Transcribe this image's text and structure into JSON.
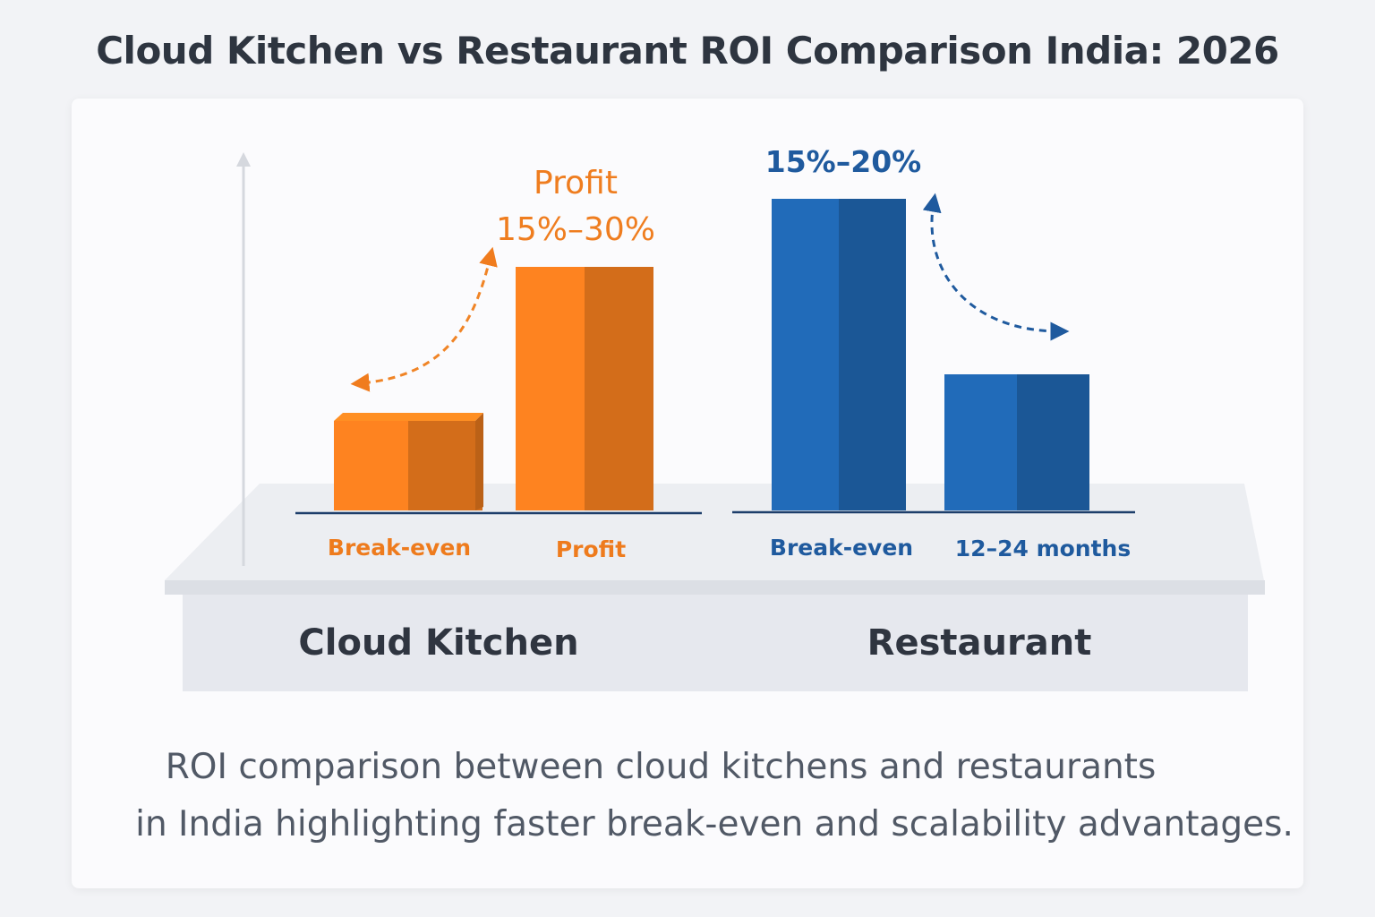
{
  "title": "Cloud Kitchen vs Restaurant ROI Comparison India: 2026",
  "caption": {
    "line1": "ROI comparison between cloud kitchens and restaurants",
    "line2": "in India highlighting faster break-even and scalability advantages."
  },
  "colors": {
    "cloud_kitchen": "#f07c1e",
    "restaurant": "#1f63ab",
    "title_text": "#2e3540",
    "caption_text": "#515966"
  },
  "chart_data": {
    "type": "bar",
    "title": "Cloud Kitchen vs Restaurant ROI Comparison India: 2026",
    "xlabel": "",
    "ylabel": "",
    "yaxis_ticks": false,
    "grid": false,
    "groups": [
      {
        "name": "Cloud Kitchen",
        "color": "#f07c1e",
        "bars": [
          {
            "category": "Break-even",
            "value": 2.5,
            "label": "Break-even",
            "annotation": ""
          },
          {
            "category": "Profit",
            "value": 6.8,
            "label": "Profit",
            "annotation": "Profit\n15%–30%"
          }
        ],
        "arrow": "curved dashed double-headed arrow between the two bars"
      },
      {
        "name": "Restaurant",
        "color": "#1f63ab",
        "bars": [
          {
            "category": "Break-even",
            "value": 8.7,
            "label": "Break-even",
            "annotation": "15%–20%"
          },
          {
            "category": "12–24 months",
            "value": 3.8,
            "label": "12–24 months",
            "annotation": ""
          }
        ],
        "arrow": "curved dashed double-headed arrow between the two bars"
      }
    ],
    "ylim": [
      0,
      10
    ]
  }
}
